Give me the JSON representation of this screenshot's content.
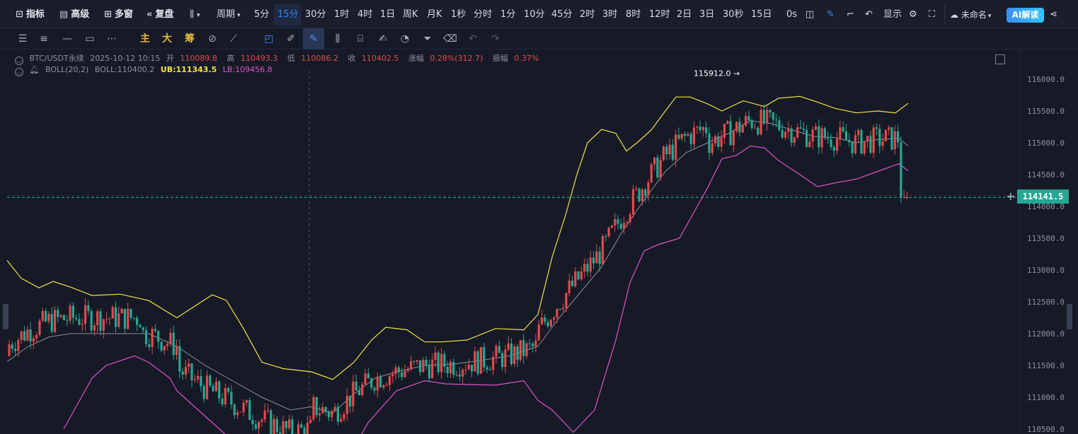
{
  "toolbar": {
    "indicators": "指标",
    "advanced": "高级",
    "multi_window": "多窗",
    "replay": "复盘",
    "period": "周期",
    "timeframes": [
      "5分",
      "15分",
      "30分",
      "1时",
      "4时",
      "1日",
      "周K",
      "月K",
      "1秒",
      "分时",
      "1分",
      "10分",
      "45分",
      "2时",
      "3时",
      "8时",
      "12时",
      "2日",
      "3日",
      "30秒",
      "15日"
    ],
    "selected_timeframe": "15分",
    "countdown": "0s",
    "display": "显示",
    "cloud_name": "未命名",
    "ai_button": "AI解读"
  },
  "drawing_tools": {
    "main": "主",
    "large": "大",
    "chips": "筹"
  },
  "legend": {
    "symbol": "BTC/USDT永续",
    "datetime": "2025-10-12 10:15",
    "open_label": "开",
    "open": "110089.8",
    "high_label": "高",
    "high": "110493.3",
    "low_label": "低",
    "low": "110086.2",
    "close_label": "收",
    "close": "110402.5",
    "change_label": "涨幅",
    "change": "0.28%(312.7)",
    "amplitude_label": "振幅",
    "amplitude": "0.37%",
    "indicator": "BOLL(20,2)",
    "boll_mid": "BOLL:110400.2",
    "boll_ub": "UB:111343.5",
    "boll_lb": "LB:109456.8"
  },
  "chart": {
    "high_marker": "115912.0 →",
    "current_price": "114141.5",
    "price_ticks": [
      "116000.0",
      "115500.0",
      "115000.0",
      "114500.0",
      "114000.0",
      "113500.0",
      "113000.0",
      "112500.0",
      "112000.0",
      "111500.0",
      "111000.0",
      "110500.0"
    ],
    "colors": {
      "up": "#e04a4a",
      "down": "#26a791",
      "ub": "#f2e245",
      "lb": "#e052c8",
      "mid": "#8c8f9c"
    }
  }
}
